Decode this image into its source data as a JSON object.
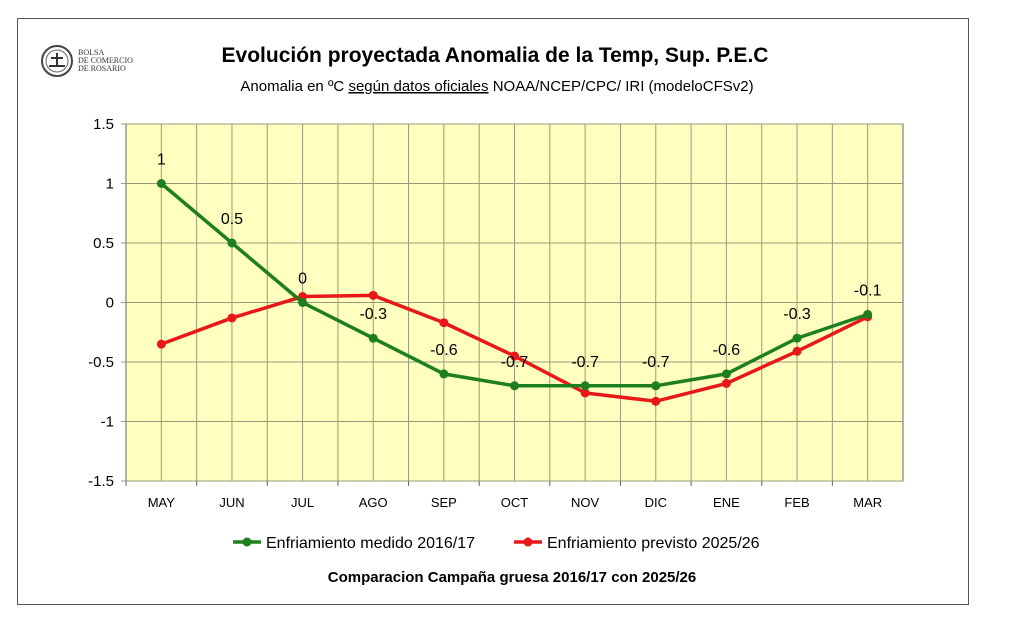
{
  "logo": {
    "lines": [
      "BOLSA",
      "DE COMERCIO",
      "DE ROSARIO"
    ]
  },
  "chart_data": {
    "type": "line",
    "title": "Evolución proyectada Anomalia de la Temp, Sup.  P.E.C",
    "subtitle_parts": [
      "Anomalia en ºC ",
      "según datos oficiales",
      " NOAA/NCEP/CPC/ IRI (modeloCFSv2)"
    ],
    "footer": "Comparacion Campaña gruesa 2016/17 con 2025/26",
    "categories": [
      "MAY",
      "JUN",
      "JUL",
      "AGO",
      "SEP",
      "OCT",
      "NOV",
      "DIC",
      "ENE",
      "FEB",
      "MAR"
    ],
    "ylim": [
      -1.5,
      1.5
    ],
    "yticks": [
      "1.5",
      "1",
      "0.5",
      "0",
      "-0.5",
      "-1",
      "-1.5"
    ],
    "grid": true,
    "legend": "bottom",
    "background": "#FFFFC0",
    "series": [
      {
        "name": "Enfriamiento medido 2016/17",
        "color": "#1E7F1E",
        "values": [
          1,
          0.5,
          0,
          -0.3,
          -0.6,
          -0.7,
          -0.7,
          -0.7,
          -0.6,
          -0.3,
          -0.1
        ],
        "labels": [
          "1",
          "0.5",
          "0",
          "-0.3",
          "-0.6",
          "-0.7",
          "-0.7",
          "-0.7",
          "-0.6",
          "-0.3",
          "-0.1"
        ]
      },
      {
        "name": "Enfriamiento previsto 2025/26",
        "color": "#E81818",
        "values": [
          -0.35,
          -0.13,
          0.05,
          0.06,
          -0.17,
          -0.45,
          -0.76,
          -0.83,
          -0.68,
          -0.41,
          -0.12
        ]
      }
    ]
  }
}
